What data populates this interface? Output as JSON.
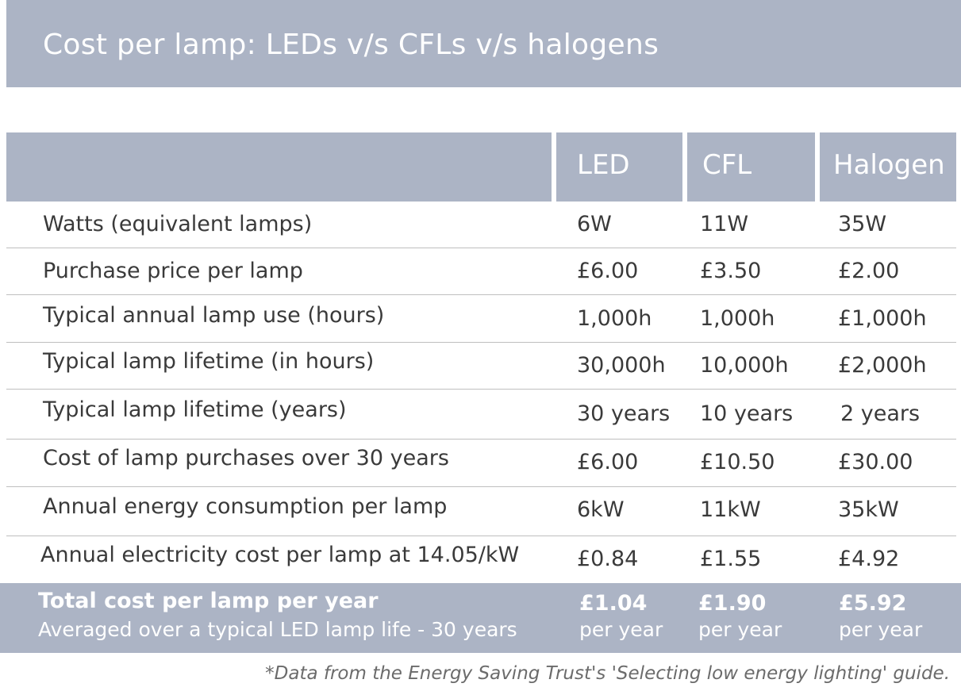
{
  "title": "Cost per lamp: LEDs v/s CFLs v/s halogens",
  "columns": [
    "LED",
    "CFL",
    "Halogen"
  ],
  "rows": [
    {
      "label": "Watts (equivalent lamps)",
      "led": "6W",
      "cfl": "11W",
      "halogen": "35W"
    },
    {
      "label": "Purchase price per lamp",
      "led": "£6.00",
      "cfl": "£3.50",
      "halogen": "£2.00"
    },
    {
      "label": "Typical annual lamp use (hours)",
      "led": "1,000h",
      "cfl": "1,000h",
      "halogen": "£1,000h"
    },
    {
      "label": "Typical lamp lifetime (in hours)",
      "led": "30,000h",
      "cfl": "10,000h",
      "halogen": "£2,000h"
    },
    {
      "label": "Typical lamp lifetime (years)",
      "led": "30 years",
      "cfl": "10 years",
      "halogen": "2 years"
    },
    {
      "label": "Cost of lamp purchases over 30 years",
      "led": "£6.00",
      "cfl": "£10.50",
      "halogen": "£30.00"
    },
    {
      "label": "Annual energy consumption per lamp",
      "led": "6kW",
      "cfl": "11kW",
      "halogen": "35kW"
    },
    {
      "label": "Annual electricity cost per lamp at 14.05/kW",
      "led": "£0.84",
      "cfl": "£1.55",
      "halogen": "£4.92"
    }
  ],
  "total": {
    "label": "Total cost per lamp per year",
    "sublabel": "Averaged over a typical LED lamp life - 30 years",
    "led": "£1.04",
    "cfl": "£1.90",
    "halogen": "£5.92",
    "unit": "per year"
  },
  "footnote": "*Data from the Energy Saving Trust's 'Selecting low energy lighting' guide.",
  "colors": {
    "header_bg": "#acb4c5",
    "header_text": "#ffffff",
    "body_text": "#3a3a3a",
    "footnote_text": "#6b6b6b"
  }
}
